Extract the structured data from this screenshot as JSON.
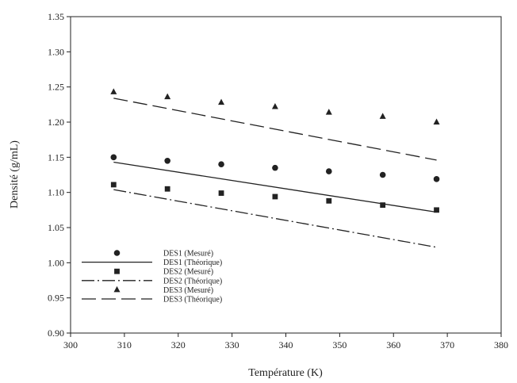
{
  "chart_data": {
    "type": "scatter",
    "title": "",
    "xlabel": "Température (K)",
    "ylabel": "Densité (g/mL)",
    "xlim": [
      300,
      380
    ],
    "ylim": [
      0.9,
      1.35
    ],
    "xticks": [
      "300",
      "310",
      "320",
      "330",
      "340",
      "350",
      "360",
      "370",
      "380"
    ],
    "yticks": [
      "0.90",
      "0.95",
      "1.00",
      "1.05",
      "1.10",
      "1.15",
      "1.20",
      "1.25",
      "1.30",
      "1.35"
    ],
    "grid": false,
    "legend_position": "bottom-left",
    "series": [
      {
        "name": "DES1 (Mesuré)",
        "kind": "marker",
        "marker": "circle",
        "x": [
          308,
          318,
          328,
          338,
          348,
          358,
          368
        ],
        "y": [
          1.15,
          1.145,
          1.14,
          1.135,
          1.13,
          1.125,
          1.119
        ]
      },
      {
        "name": "DES1 (Théorique)",
        "kind": "line",
        "dash": "solid",
        "x": [
          308,
          368
        ],
        "y": [
          1.143,
          1.072
        ]
      },
      {
        "name": "DES2 (Mesuré)",
        "kind": "marker",
        "marker": "square",
        "x": [
          308,
          318,
          328,
          338,
          348,
          358,
          368
        ],
        "y": [
          1.111,
          1.105,
          1.099,
          1.094,
          1.088,
          1.082,
          1.075
        ]
      },
      {
        "name": "DES2 (Théorique)",
        "kind": "line",
        "dash": "dash-dot",
        "x": [
          308,
          368
        ],
        "y": [
          1.104,
          1.022
        ]
      },
      {
        "name": "DES3 (Mesuré)",
        "kind": "marker",
        "marker": "triangle",
        "x": [
          308,
          318,
          328,
          338,
          348,
          358,
          368
        ],
        "y": [
          1.243,
          1.236,
          1.228,
          1.222,
          1.214,
          1.208,
          1.2
        ]
      },
      {
        "name": "DES3 (Théorique)",
        "kind": "line",
        "dash": "long-dash",
        "x": [
          308,
          368
        ],
        "y": [
          1.234,
          1.146
        ]
      }
    ]
  }
}
